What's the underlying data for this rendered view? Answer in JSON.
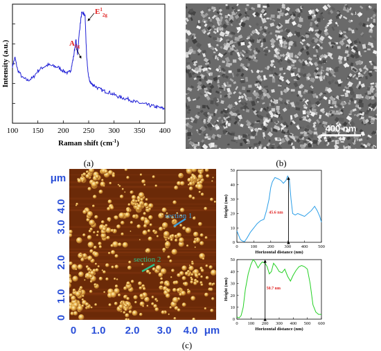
{
  "panel_labels": {
    "a": "(a)",
    "b": "(b)",
    "c": "(c)"
  },
  "raman": {
    "ylabel": "Intensity (a.u.)",
    "xlabel_main": "Raman shift (cm",
    "xlabel_sup": "-1",
    "xlabel_end": ")",
    "peak_a1g_main": "A",
    "peak_a1g_sub": "1g",
    "peak_e_main": "E",
    "peak_e_sup": "1",
    "peak_e_sub": "2g",
    "color": "#1f1fd6",
    "peak_color": "#e02020"
  },
  "sem": {
    "scale_label": "400 nm"
  },
  "afm": {
    "section1_label": "section 1",
    "section2_label": "section 2",
    "unit_label": "μm",
    "ticks_y": [
      "4.0",
      "3.0",
      "2.0",
      "1.0",
      "0"
    ],
    "ticks_x": [
      "0",
      "1.0",
      "2.0",
      "3.0",
      "4.0"
    ],
    "tick_color": "#2a4fd8",
    "section_color": "#3aa0e0",
    "section2_color": "#2cc08a"
  },
  "chart_data": [
    {
      "type": "line",
      "panel": "a",
      "xlabel": "Raman shift (cm-1)",
      "ylabel": "Intensity (a.u.)",
      "xlim": [
        100,
        400
      ],
      "xticks": [
        100,
        150,
        200,
        250,
        300,
        350,
        400
      ],
      "annotations": [
        "A1g",
        "E12g"
      ],
      "series": [
        {
          "x": [
            100,
            105,
            110,
            120,
            130,
            140,
            150,
            160,
            170,
            180,
            190,
            200,
            210,
            215,
            220,
            225,
            228,
            232,
            236,
            240,
            243,
            246,
            250,
            255,
            260,
            270,
            280,
            290,
            300,
            310,
            320,
            330,
            340,
            350,
            360,
            370,
            380,
            390,
            400
          ],
          "y": [
            0.48,
            0.55,
            0.45,
            0.38,
            0.36,
            0.38,
            0.44,
            0.47,
            0.49,
            0.48,
            0.47,
            0.44,
            0.42,
            0.45,
            0.55,
            0.7,
            0.58,
            0.78,
            0.92,
            0.92,
            0.9,
            0.55,
            0.38,
            0.33,
            0.32,
            0.29,
            0.27,
            0.26,
            0.24,
            0.22,
            0.21,
            0.2,
            0.18,
            0.17,
            0.16,
            0.15,
            0.14,
            0.13,
            0.12
          ]
        }
      ]
    },
    {
      "type": "line",
      "panel": "c-top",
      "xlabel": "Horizontal distance (nm)",
      "ylabel": "Height (nm)",
      "xlim": [
        0,
        500
      ],
      "ylim": [
        0,
        50
      ],
      "xticks": [
        0,
        100,
        200,
        300,
        400,
        500
      ],
      "yticks": [
        0,
        10,
        20,
        30,
        40,
        50
      ],
      "annotation": "45.6 nm",
      "series": [
        {
          "color": "#2a9ee8",
          "x": [
            0,
            10,
            20,
            30,
            45,
            60,
            80,
            100,
            120,
            140,
            160,
            175,
            190,
            200,
            210,
            225,
            245,
            260,
            275,
            290,
            300,
            310,
            320,
            330,
            345,
            360,
            380,
            400,
            420,
            440,
            460,
            475,
            490,
            500
          ],
          "y": [
            8,
            5,
            2,
            1,
            0.5,
            3,
            7,
            10,
            13,
            15,
            16,
            22,
            30,
            38,
            42,
            45,
            44,
            43,
            41,
            43,
            46,
            44,
            30,
            20,
            19,
            20,
            19,
            18,
            20,
            22,
            25,
            22,
            18,
            14
          ]
        }
      ]
    },
    {
      "type": "line",
      "panel": "c-bottom",
      "xlabel": "Horizontal distance (nm)",
      "ylabel": "Height (nm)",
      "xlim": [
        0,
        600
      ],
      "ylim": [
        0,
        50
      ],
      "xticks": [
        0,
        100,
        200,
        300,
        400,
        500,
        600
      ],
      "yticks": [
        0,
        10,
        20,
        30,
        40,
        50
      ],
      "annotation": "50.7 nm",
      "series": [
        {
          "color": "#22d022",
          "x": [
            0,
            15,
            30,
            45,
            60,
            80,
            100,
            115,
            130,
            150,
            165,
            180,
            200,
            215,
            230,
            245,
            260,
            280,
            300,
            320,
            340,
            360,
            380,
            400,
            420,
            440,
            460,
            480,
            500,
            520,
            540,
            560,
            580,
            600
          ],
          "y": [
            2,
            1,
            3,
            10,
            25,
            38,
            46,
            50,
            48,
            43,
            46,
            48,
            47,
            44,
            38,
            40,
            47,
            44,
            40,
            39,
            42,
            36,
            32,
            37,
            41,
            44,
            45,
            44,
            42,
            30,
            12,
            6,
            4,
            4
          ]
        }
      ]
    }
  ]
}
